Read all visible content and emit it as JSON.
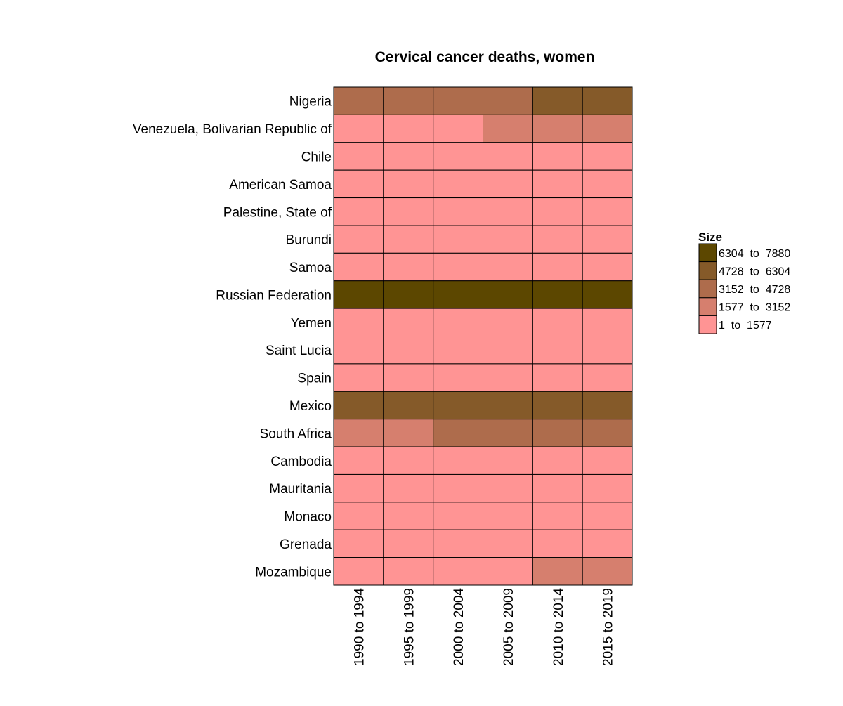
{
  "chart_data": {
    "type": "heatmap",
    "title": "Cervical cancer deaths, women",
    "xlabel": "",
    "ylabel": "",
    "categories": [
      "1990 to 1994",
      "1995 to 1999",
      "2000 to 2004",
      "2005 to 2009",
      "2010 to 2014",
      "2015 to 2019"
    ],
    "rows": [
      "Nigeria",
      "Venezuela, Bolivarian Republic of",
      "Chile",
      "American Samoa",
      "Palestine, State of",
      "Burundi",
      "Samoa",
      "Russian Federation",
      "Yemen",
      "Saint Lucia",
      "Spain",
      "Mexico",
      "South Africa",
      "Cambodia",
      "Mauritania",
      "Monaco",
      "Grenada",
      "Mozambique"
    ],
    "bin_index": [
      [
        2,
        2,
        2,
        2,
        3,
        3
      ],
      [
        0,
        0,
        0,
        1,
        1,
        1
      ],
      [
        0,
        0,
        0,
        0,
        0,
        0
      ],
      [
        0,
        0,
        0,
        0,
        0,
        0
      ],
      [
        0,
        0,
        0,
        0,
        0,
        0
      ],
      [
        0,
        0,
        0,
        0,
        0,
        0
      ],
      [
        0,
        0,
        0,
        0,
        0,
        0
      ],
      [
        4,
        4,
        4,
        4,
        4,
        4
      ],
      [
        0,
        0,
        0,
        0,
        0,
        0
      ],
      [
        0,
        0,
        0,
        0,
        0,
        0
      ],
      [
        0,
        0,
        0,
        0,
        0,
        0
      ],
      [
        3,
        3,
        3,
        3,
        3,
        3
      ],
      [
        1,
        1,
        2,
        2,
        2,
        2
      ],
      [
        0,
        0,
        0,
        0,
        0,
        0
      ],
      [
        0,
        0,
        0,
        0,
        0,
        0
      ],
      [
        0,
        0,
        0,
        0,
        0,
        0
      ],
      [
        0,
        0,
        0,
        0,
        0,
        0
      ],
      [
        0,
        0,
        0,
        0,
        1,
        1
      ]
    ],
    "legend": {
      "title": "Size",
      "placement": "right",
      "bins": [
        {
          "label": "1  to  1577",
          "min": 1,
          "max": 1577,
          "color": "#FF9494"
        },
        {
          "label": "1577  to  3152",
          "min": 1577,
          "max": 3152,
          "color": "#D67F6E"
        },
        {
          "label": "3152  to  4728",
          "min": 3152,
          "max": 4728,
          "color": "#AE6C4C"
        },
        {
          "label": "4728  to  6304",
          "min": 4728,
          "max": 6304,
          "color": "#855A29"
        },
        {
          "label": "6304  to  7880",
          "min": 6304,
          "max": 7880,
          "color": "#5C4700"
        }
      ]
    }
  }
}
